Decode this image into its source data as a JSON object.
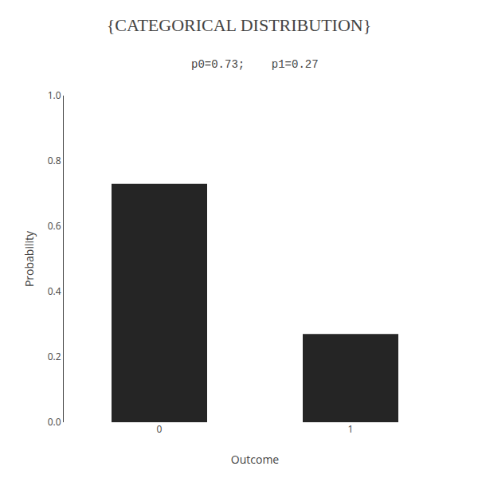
{
  "chart_data": {
    "type": "bar",
    "title": "{CATEGORICAL DISTRIBUTION}",
    "subtitle": "p0=0.73;    p1=0.27",
    "categories": [
      "0",
      "1"
    ],
    "values": [
      0.73,
      0.27
    ],
    "color": "#252525",
    "xlabel": "Outcome",
    "ylabel": "Probability",
    "ylim": [
      0.0,
      1.0
    ],
    "yticks": [
      {
        "value": 0.0,
        "label": "0.0"
      },
      0.2,
      0.4,
      0.6,
      0.8,
      {
        "value": 1.0,
        "label": "1.0"
      }
    ],
    "grid": false
  }
}
